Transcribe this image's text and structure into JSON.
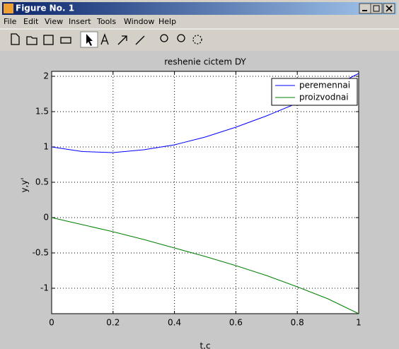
{
  "window": {
    "title": "Figure No. 1",
    "menu": [
      "File",
      "Edit",
      "View",
      "Insert",
      "Tools",
      "Window",
      "Help"
    ]
  },
  "chart_data": {
    "type": "line",
    "title": "reshenie cictem DY",
    "x_label": "t,c",
    "y_label": "y,y'",
    "x": [
      0,
      0.1,
      0.2,
      0.3,
      0.4,
      0.5,
      0.6,
      0.7,
      0.8,
      0.9,
      1
    ],
    "series": [
      {
        "name": "peremennai",
        "color": "#0000ff",
        "values": [
          1.0,
          0.935,
          0.92,
          0.96,
          1.03,
          1.14,
          1.28,
          1.44,
          1.62,
          1.82,
          2.04
        ]
      },
      {
        "name": "proizvodnai",
        "color": "#008000",
        "values": [
          0,
          -0.1,
          -0.2,
          -0.31,
          -0.43,
          -0.55,
          -0.68,
          -0.82,
          -0.98,
          -1.15,
          -1.36
        ]
      }
    ],
    "xlim": [
      0,
      1
    ],
    "ylim": [
      -1.36,
      2.07
    ],
    "xticks": [
      0,
      0.2,
      0.4,
      0.6,
      0.8,
      1
    ],
    "yticks": [
      -1,
      -0.5,
      0,
      0.5,
      1,
      1.5,
      2
    ],
    "grid": true,
    "legend": "top-right"
  }
}
